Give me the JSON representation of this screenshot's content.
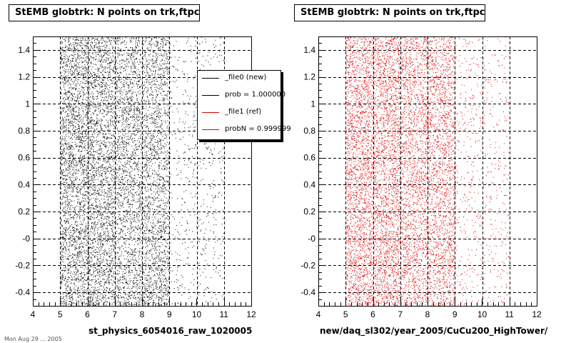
{
  "chart_data": [
    {
      "type": "scatter",
      "title": "StEMB globtrk: N points on trk,ftpc",
      "xlabel": "st_physics_6054016_raw_1020005",
      "ylabel": "",
      "xlim": [
        4,
        12
      ],
      "ylim": [
        -0.5,
        1.5
      ],
      "x_ticks": [
        "4",
        "5",
        "6",
        "7",
        "8",
        "9",
        "10",
        "11",
        "12"
      ],
      "y_ticks": [
        "-0.4",
        "-0.2",
        "-0",
        "0.2",
        "0.4",
        "0.6",
        "0.8",
        "1",
        "1.2",
        "1.4"
      ],
      "grid": true,
      "point_color": "#000000",
      "point_x_range": [
        5,
        11
      ],
      "density_peak_x": [
        5,
        7
      ]
    },
    {
      "type": "scatter",
      "title": "StEMB globtrk: N points on trk,ftpc",
      "xlabel": "new/daq_sl302/year_2005/CuCu200_HighTower/",
      "ylabel": "",
      "xlim": [
        4,
        12
      ],
      "ylim": [
        -0.5,
        1.5
      ],
      "x_ticks": [
        "4",
        "5",
        "6",
        "7",
        "8",
        "9",
        "10",
        "11",
        "12"
      ],
      "y_ticks": [
        "-0.4",
        "-0.2",
        "-0",
        "0.2",
        "0.4",
        "0.6",
        "0.8",
        "1",
        "1.2",
        "1.4"
      ],
      "grid": true,
      "point_color": "#dd0000",
      "point_x_range": [
        5,
        11
      ],
      "density_peak_x": [
        5,
        7
      ]
    }
  ],
  "legend": {
    "placement": "top-right",
    "entries": [
      {
        "label": "_file0 (new)",
        "color": "#000000"
      },
      {
        "label": "prob = 1.000000",
        "color": "#000000"
      },
      {
        "label": "_file1 (ref)",
        "color": "#dd0000"
      },
      {
        "label": "probN = 0.999999",
        "color": "#dd0000"
      }
    ]
  },
  "footer_fragment": "Mon Aug 29 ... 2005"
}
